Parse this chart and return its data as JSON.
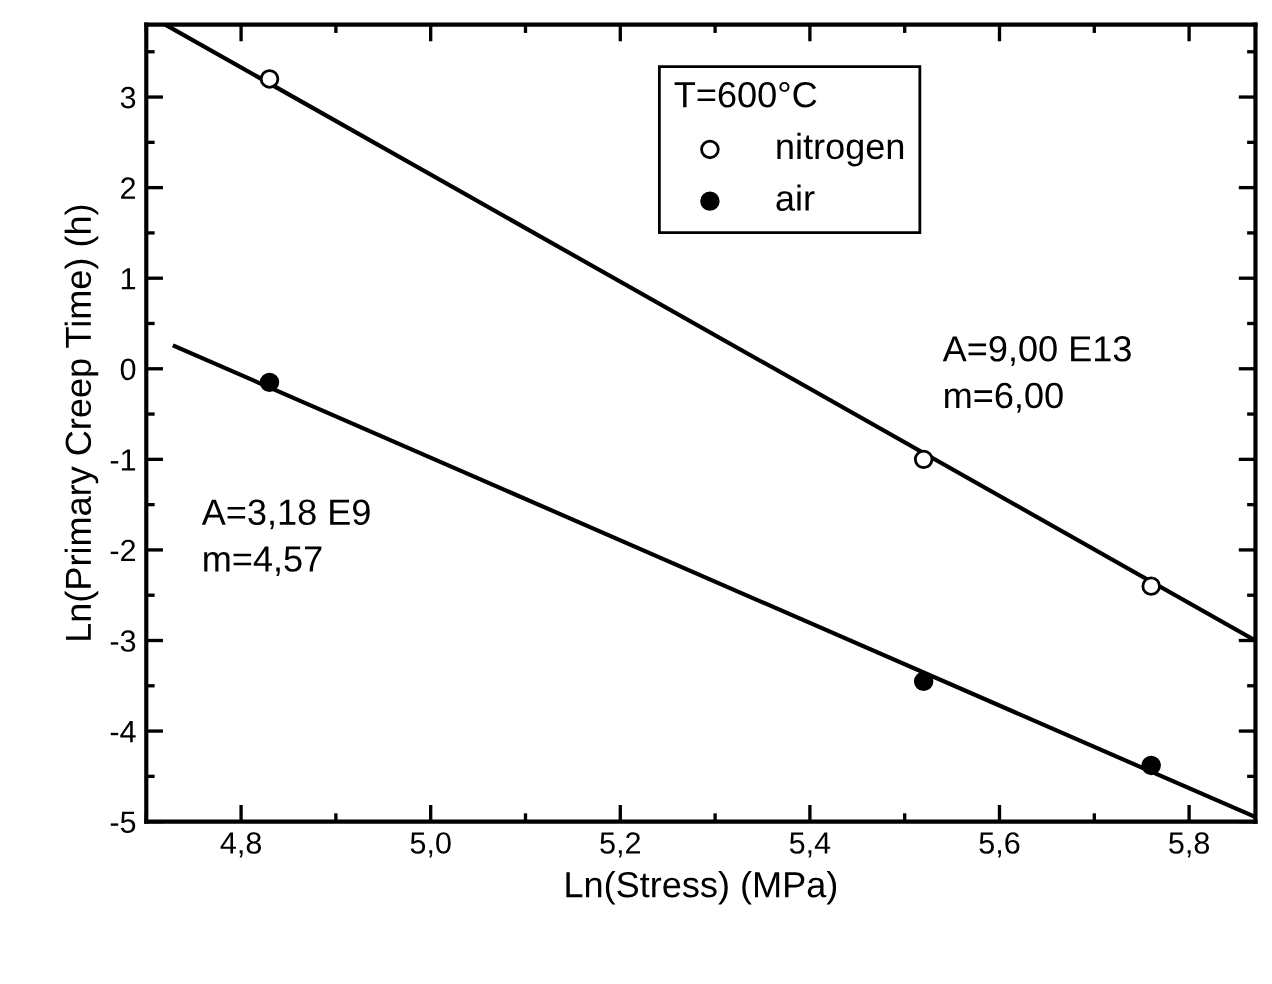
{
  "chart_data": {
    "type": "scatter",
    "xlabel": "Ln(Stress) (MPa)",
    "ylabel": "Ln(Primary Creep Time) (h)",
    "legend_title": "T=600°C",
    "series": [
      {
        "name": "nitrogen",
        "marker": "circle",
        "color": "#ffffff",
        "x": [
          4.83,
          5.52,
          5.76
        ],
        "values": [
          3.2,
          -1.0,
          -2.4
        ]
      },
      {
        "name": "air",
        "marker": "circle",
        "color": "#000000",
        "x": [
          4.83,
          5.52,
          5.76
        ],
        "values": [
          -0.15,
          -3.45,
          -4.38
        ]
      },
      {
        "type": "line",
        "color": "#000000",
        "x": [
          4.72,
          5.87
        ],
        "values": [
          3.8,
          -3.0
        ]
      },
      {
        "type": "line",
        "color": "#000000",
        "x": [
          4.73,
          5.87
        ],
        "values": [
          0.25,
          -4.95
        ]
      }
    ],
    "annotations": [
      "A=9,00 E13\nm=6,00",
      "A=3,18 E9\nm=4,57"
    ],
    "xlim": [
      4.7,
      5.87
    ],
    "ylim": [
      -5,
      3.8
    ],
    "xticks": [
      {
        "value": 4.8,
        "label": "4,8"
      },
      {
        "value": 5.0,
        "label": "5,0"
      },
      {
        "value": 5.2,
        "label": "5,2"
      },
      {
        "value": 5.4,
        "label": "5,4"
      },
      {
        "value": 5.6,
        "label": "5,6"
      },
      {
        "value": 5.8,
        "label": "5,8"
      }
    ],
    "yticks": [
      -5,
      -4,
      -3,
      -2,
      -1,
      0,
      1,
      2,
      3
    ],
    "legend": "top",
    "grid": false
  }
}
